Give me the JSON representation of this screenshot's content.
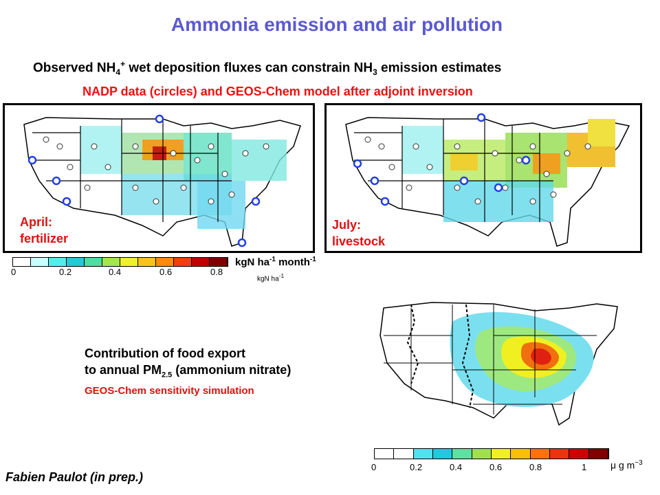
{
  "title": "Ammonia emission and air pollution",
  "subtitle": {
    "p1": "Observed NH",
    "sub1": "4",
    "sup1": "+",
    "p2": " wet deposition fluxes can constrain NH",
    "sub2": "3",
    "p3": " emission estimates"
  },
  "caption_red": "NADP data (circles) and GEOS-Chem model after adjoint inversion",
  "map_april": {
    "label_line1": "April:",
    "label_line2": "fertilizer"
  },
  "map_july": {
    "label_line1": "July:",
    "label_line2": "livestock"
  },
  "colorbar_top": {
    "ticks": [
      "0",
      "0.2",
      "0.4",
      "0.6",
      "0.8"
    ],
    "inner_unit": "kgN ha",
    "inner_unit_sup": "-1",
    "colors": [
      "#ffffff",
      "#c8ffff",
      "#55ecec",
      "#27c8d8",
      "#50dca0",
      "#a4e650",
      "#f0f032",
      "#ffc020",
      "#ff8a10",
      "#f04010",
      "#c00000",
      "#800000"
    ]
  },
  "units_top": {
    "p1": "kgN ha",
    "sup1": "-1",
    "p2": " month",
    "sup2": "-1"
  },
  "food": {
    "line1": "Contribution of food export",
    "line2_p1": "to annual PM",
    "line2_sub": "2.5",
    "line2_p2": " (ammonium nitrate)",
    "note": "GEOS-Chem sensitivity simulation"
  },
  "colorbar_bottom": {
    "ticks": [
      "0",
      "0.2",
      "0.4",
      "0.6",
      "0.8",
      "1"
    ],
    "unit": "μ g m",
    "unit_sup": "−3",
    "colors": [
      "#ffffff",
      "#ffffff",
      "#55e0f0",
      "#20c8e0",
      "#60e0a0",
      "#a0e050",
      "#f0f020",
      "#f8c000",
      "#ff7010",
      "#f03010",
      "#d00000",
      "#800000"
    ]
  },
  "credit": "Fabien Paulot (in prep.)"
}
